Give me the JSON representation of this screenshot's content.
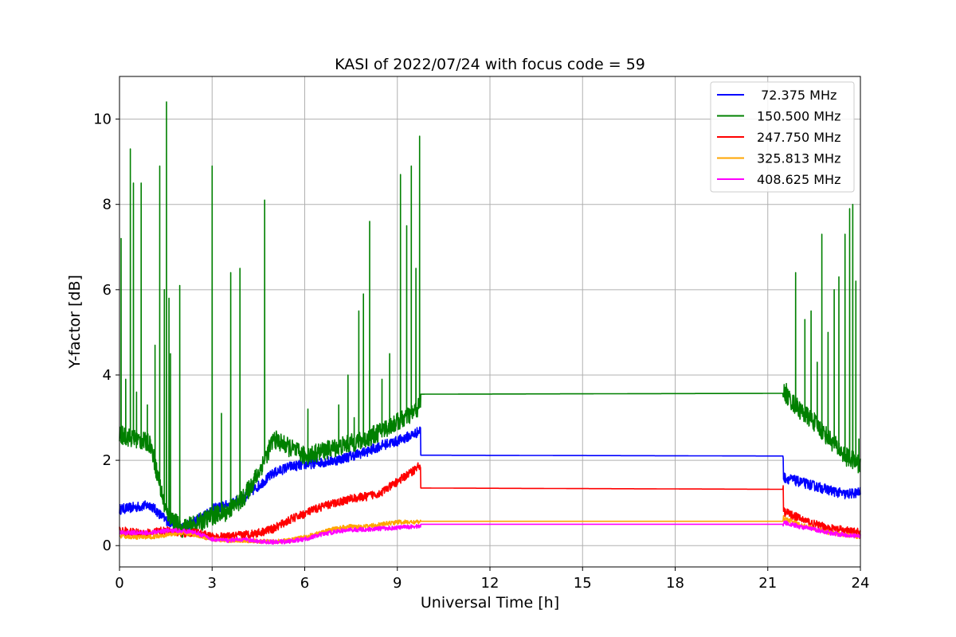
{
  "chart_data": {
    "type": "line",
    "title": "KASI of 2022/07/24 with focus code = 59",
    "xlabel": "Universal Time [h]",
    "ylabel": "Y-factor [dB]",
    "xlim": [
      0,
      24
    ],
    "ylim": [
      -0.5,
      11
    ],
    "xticks": [
      0,
      3,
      6,
      9,
      12,
      15,
      18,
      21,
      24
    ],
    "yticks": [
      0,
      2,
      4,
      6,
      8,
      10
    ],
    "grid": true,
    "legend_position": "top-right",
    "series": [
      {
        "name": " 72.375 MHz",
        "color": "#0000ff",
        "x": [
          0,
          0.5,
          1,
          1.5,
          2,
          2.5,
          3,
          3.5,
          4,
          4.5,
          5,
          5.5,
          6,
          6.5,
          7,
          7.5,
          8,
          8.5,
          9,
          9.5,
          9.75,
          9.76,
          21.5,
          21.51,
          22,
          22.5,
          23,
          23.5,
          24
        ],
        "y": [
          0.85,
          0.9,
          0.95,
          0.6,
          0.4,
          0.6,
          0.85,
          0.95,
          1.1,
          1.4,
          1.7,
          1.85,
          1.9,
          1.95,
          2.0,
          2.1,
          2.2,
          2.35,
          2.45,
          2.6,
          2.7,
          2.12,
          2.1,
          1.6,
          1.5,
          1.4,
          1.3,
          1.2,
          1.25
        ]
      },
      {
        "name": "150.500 MHz",
        "color": "#008000",
        "x": [
          0,
          0.5,
          1,
          1.5,
          2,
          2.5,
          3,
          3.5,
          4,
          4.5,
          5,
          5.5,
          6,
          6.5,
          7,
          7.5,
          8,
          8.5,
          9,
          9.5,
          9.75,
          9.76,
          21.5,
          21.51,
          22,
          22.5,
          23,
          23.5,
          24
        ],
        "y": [
          2.6,
          2.5,
          2.4,
          0.8,
          0.4,
          0.5,
          0.7,
          0.8,
          1.1,
          1.7,
          2.5,
          2.3,
          2.1,
          2.2,
          2.3,
          2.4,
          2.5,
          2.7,
          2.9,
          3.1,
          3.3,
          3.55,
          3.57,
          3.6,
          3.2,
          2.9,
          2.5,
          2.1,
          1.9
        ]
      },
      {
        "name": "247.750 MHz",
        "color": "#ff0000",
        "x": [
          0,
          0.5,
          1,
          1.5,
          2,
          2.5,
          3,
          3.5,
          4,
          4.5,
          5,
          5.5,
          6,
          6.5,
          7,
          7.5,
          8,
          8.5,
          9,
          9.5,
          9.75,
          9.76,
          21.5,
          21.51,
          22,
          22.5,
          23,
          23.5,
          24
        ],
        "y": [
          0.35,
          0.3,
          0.3,
          0.35,
          0.3,
          0.3,
          0.2,
          0.2,
          0.25,
          0.3,
          0.4,
          0.6,
          0.75,
          0.9,
          1.0,
          1.1,
          1.15,
          1.25,
          1.5,
          1.75,
          1.9,
          1.35,
          1.32,
          0.8,
          0.65,
          0.5,
          0.4,
          0.35,
          0.3
        ]
      },
      {
        "name": "325.813 MHz",
        "color": "#ffa500",
        "x": [
          0,
          0.5,
          1,
          1.5,
          2,
          2.5,
          3,
          3.5,
          4,
          4.5,
          5,
          5.5,
          6,
          6.5,
          7,
          7.5,
          8,
          8.5,
          9,
          9.5,
          9.75,
          9.76,
          21.5,
          21.51,
          22,
          22.5,
          23,
          23.5,
          24
        ],
        "y": [
          0.22,
          0.2,
          0.2,
          0.25,
          0.3,
          0.25,
          0.15,
          0.12,
          0.12,
          0.1,
          0.1,
          0.12,
          0.2,
          0.3,
          0.4,
          0.45,
          0.45,
          0.5,
          0.55,
          0.55,
          0.55,
          0.57,
          0.57,
          0.65,
          0.5,
          0.4,
          0.3,
          0.25,
          0.2
        ]
      },
      {
        "name": "408.625 MHz",
        "color": "#ff00ff",
        "x": [
          0,
          0.5,
          1,
          1.5,
          2,
          2.5,
          3,
          3.5,
          4,
          4.5,
          5,
          5.5,
          6,
          6.5,
          7,
          7.5,
          8,
          8.5,
          9,
          9.5,
          9.75,
          9.76,
          21.5,
          21.51,
          22,
          22.5,
          23,
          23.5,
          24
        ],
        "y": [
          0.3,
          0.3,
          0.3,
          0.35,
          0.35,
          0.3,
          0.15,
          0.12,
          0.15,
          0.1,
          0.08,
          0.1,
          0.15,
          0.25,
          0.33,
          0.37,
          0.38,
          0.4,
          0.42,
          0.45,
          0.45,
          0.5,
          0.5,
          0.55,
          0.45,
          0.38,
          0.3,
          0.25,
          0.22
        ]
      }
    ],
    "spikes": {
      "150.500 MHz": [
        [
          0.05,
          7.2
        ],
        [
          0.2,
          3.9
        ],
        [
          0.35,
          9.3
        ],
        [
          0.45,
          8.5
        ],
        [
          0.55,
          3.6
        ],
        [
          0.7,
          8.5
        ],
        [
          0.9,
          3.3
        ],
        [
          1.15,
          4.7
        ],
        [
          1.3,
          8.9
        ],
        [
          1.45,
          6.0
        ],
        [
          1.52,
          10.4
        ],
        [
          1.6,
          5.8
        ],
        [
          1.65,
          4.5
        ],
        [
          1.95,
          6.1
        ],
        [
          3.0,
          8.9
        ],
        [
          3.3,
          3.1
        ],
        [
          3.6,
          6.4
        ],
        [
          3.9,
          6.5
        ],
        [
          4.7,
          8.1
        ],
        [
          6.1,
          3.2
        ],
        [
          7.1,
          3.3
        ],
        [
          7.4,
          4.0
        ],
        [
          7.6,
          3.0
        ],
        [
          7.75,
          5.5
        ],
        [
          7.9,
          5.9
        ],
        [
          8.1,
          7.6
        ],
        [
          8.5,
          3.9
        ],
        [
          8.75,
          4.5
        ],
        [
          9.1,
          8.7
        ],
        [
          9.3,
          7.5
        ],
        [
          9.45,
          8.9
        ],
        [
          9.6,
          6.5
        ],
        [
          9.72,
          9.6
        ],
        [
          21.6,
          3.8
        ],
        [
          21.9,
          6.4
        ],
        [
          22.2,
          5.3
        ],
        [
          22.4,
          5.5
        ],
        [
          22.6,
          4.3
        ],
        [
          22.75,
          7.3
        ],
        [
          22.95,
          5.0
        ],
        [
          23.15,
          6.0
        ],
        [
          23.3,
          6.3
        ],
        [
          23.5,
          7.3
        ],
        [
          23.65,
          7.9
        ],
        [
          23.75,
          8.0
        ],
        [
          23.85,
          6.2
        ],
        [
          23.95,
          2.5
        ]
      ]
    }
  }
}
